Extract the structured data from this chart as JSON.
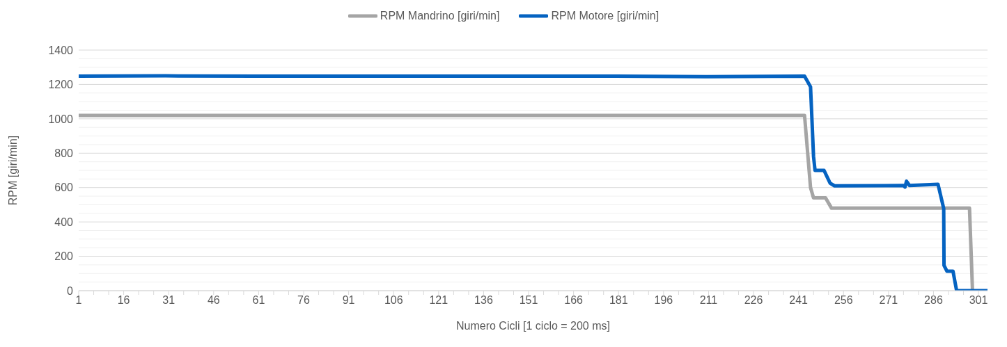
{
  "chart_data": {
    "type": "line",
    "xlabel": "Numero Cicli [1 ciclo = 200 ms]",
    "ylabel": "RPM [giri/min]",
    "xlim": [
      1,
      304
    ],
    "xticks": [
      1,
      {
        "value": 6,
        "label": null
      },
      {
        "value": 11,
        "label": null
      },
      16,
      {
        "value": 21,
        "label": null
      },
      {
        "value": 26,
        "label": null
      },
      31,
      {
        "value": 36,
        "label": null
      },
      {
        "value": 41,
        "label": null
      },
      46,
      {
        "value": 51,
        "label": null
      },
      {
        "value": 56,
        "label": null
      },
      61,
      {
        "value": 66,
        "label": null
      },
      {
        "value": 71,
        "label": null
      },
      76,
      {
        "value": 81,
        "label": null
      },
      {
        "value": 86,
        "label": null
      },
      91,
      {
        "value": 96,
        "label": null
      },
      {
        "value": 101,
        "label": null
      },
      106,
      {
        "value": 111,
        "label": null
      },
      {
        "value": 116,
        "label": null
      },
      121,
      {
        "value": 126,
        "label": null
      },
      {
        "value": 131,
        "label": null
      },
      136,
      {
        "value": 141,
        "label": null
      },
      {
        "value": 146,
        "label": null
      },
      151,
      {
        "value": 156,
        "label": null
      },
      {
        "value": 161,
        "label": null
      },
      166,
      {
        "value": 171,
        "label": null
      },
      {
        "value": 176,
        "label": null
      },
      181,
      {
        "value": 186,
        "label": null
      },
      {
        "value": 191,
        "label": null
      },
      196,
      {
        "value": 201,
        "label": null
      },
      {
        "value": 206,
        "label": null
      },
      211,
      {
        "value": 216,
        "label": null
      },
      {
        "value": 221,
        "label": null
      },
      226,
      {
        "value": 231,
        "label": null
      },
      {
        "value": 236,
        "label": null
      },
      241,
      {
        "value": 246,
        "label": null
      },
      {
        "value": 251,
        "label": null
      },
      256,
      {
        "value": 261,
        "label": null
      },
      {
        "value": 266,
        "label": null
      },
      271,
      {
        "value": 276,
        "label": null
      },
      {
        "value": 281,
        "label": null
      },
      286,
      {
        "value": 291,
        "label": null
      },
      {
        "value": 296,
        "label": null
      },
      301
    ],
    "ylim": [
      0,
      1400
    ],
    "yticks": [
      0,
      {
        "value": 50,
        "label": null
      },
      {
        "value": 100,
        "label": null
      },
      {
        "value": 150,
        "label": null
      },
      200,
      {
        "value": 250,
        "label": null
      },
      {
        "value": 300,
        "label": null
      },
      {
        "value": 350,
        "label": null
      },
      400,
      {
        "value": 450,
        "label": null
      },
      {
        "value": 500,
        "label": null
      },
      {
        "value": 550,
        "label": null
      },
      600,
      {
        "value": 650,
        "label": null
      },
      {
        "value": 700,
        "label": null
      },
      {
        "value": 750,
        "label": null
      },
      800,
      {
        "value": 850,
        "label": null
      },
      {
        "value": 900,
        "label": null
      },
      {
        "value": 950,
        "label": null
      },
      1000,
      {
        "value": 1050,
        "label": null
      },
      {
        "value": 1100,
        "label": null
      },
      {
        "value": 1150,
        "label": null
      },
      1200,
      {
        "value": 1250,
        "label": null
      },
      {
        "value": 1300,
        "label": null
      },
      {
        "value": 1350,
        "label": null
      },
      1400
    ],
    "grid": "y",
    "legend": "top",
    "marker": "none",
    "line_style": "solid",
    "series": [
      {
        "name": "RPM Mandrino [giri/min]",
        "color": "#a5a5a5",
        "x": [
          1,
          243,
          245,
          246,
          250,
          252,
          298,
          299
        ],
        "values": [
          1020,
          1020,
          600,
          540,
          540,
          480,
          480,
          0
        ]
      },
      {
        "name": "RPM Motore [giri/min]",
        "color": "#0563c1",
        "x": [
          1,
          30,
          60,
          90,
          120,
          150,
          180,
          210,
          243,
          245,
          246,
          246.5,
          249.5,
          251.5,
          253,
          276,
          276.5,
          277,
          278,
          287.5,
          289.4,
          289.5,
          290.5,
          292.5,
          293.7,
          304
        ],
        "values": [
          1248,
          1250,
          1248,
          1248,
          1248,
          1248,
          1248,
          1245,
          1248,
          1186,
          781,
          700,
          700,
          626,
          610,
          612,
          603,
          637,
          612,
          619,
          478,
          147,
          113,
          113,
          0,
          0
        ]
      }
    ]
  }
}
